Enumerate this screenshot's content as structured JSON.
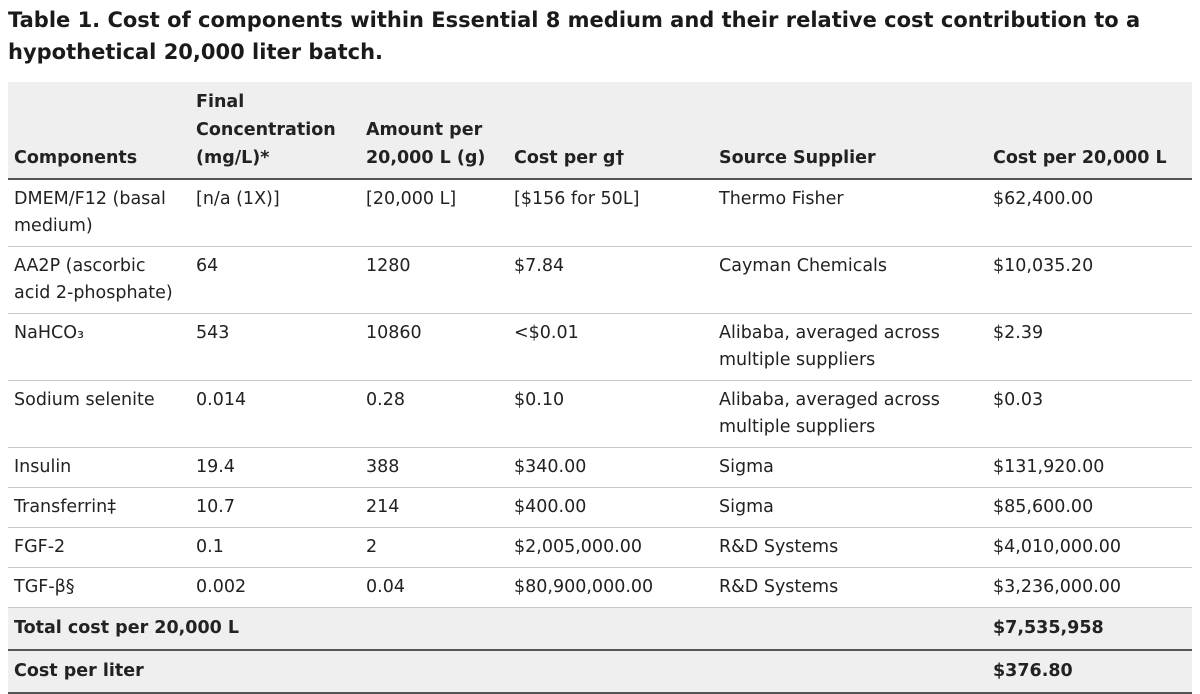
{
  "header": {
    "title": "Table 1. Cost of components within Essential 8 medium and their relative cost contribution to a hypothetical 20,000 liter batch."
  },
  "table": {
    "columns": [
      "Components",
      "Final Concentration (mg/L)*",
      "Amount per 20,000 L (g)",
      "Cost per g†",
      "Source Supplier",
      "Cost per 20,000 L"
    ],
    "rows": [
      [
        "DMEM/F12 (basal medium)",
        "[n/a (1X)]",
        "[20,000 L]",
        "[$156 for 50L]",
        "Thermo Fisher",
        "$62,400.00"
      ],
      [
        "AA2P (ascorbic acid 2-phosphate)",
        "64",
        "1280",
        "$7.84",
        "Cayman Chemicals",
        "$10,035.20"
      ],
      [
        "NaHCO₃",
        "543",
        "10860",
        "<$0.01",
        "Alibaba, averaged across multiple suppliers",
        "$2.39"
      ],
      [
        "Sodium selenite",
        "0.014",
        "0.28",
        "$0.10",
        "Alibaba, averaged across multiple suppliers",
        "$0.03"
      ],
      [
        "Insulin",
        "19.4",
        "388",
        "$340.00",
        "Sigma",
        "$131,920.00"
      ],
      [
        "Transferrin‡",
        "10.7",
        "214",
        "$400.00",
        "Sigma",
        "$85,600.00"
      ],
      [
        "FGF-2",
        "0.1",
        "2",
        "$2,005,000.00",
        "R&D Systems",
        "$4,010,000.00"
      ],
      [
        "TGF-β§",
        "0.002",
        "0.04",
        "$80,900,000.00",
        "R&D Systems",
        "$3,236,000.00"
      ]
    ],
    "totals": [
      {
        "label": "Total cost per 20,000 L",
        "value": "$7,535,958"
      },
      {
        "label": "Cost per liter",
        "value": "$376.80"
      }
    ]
  }
}
